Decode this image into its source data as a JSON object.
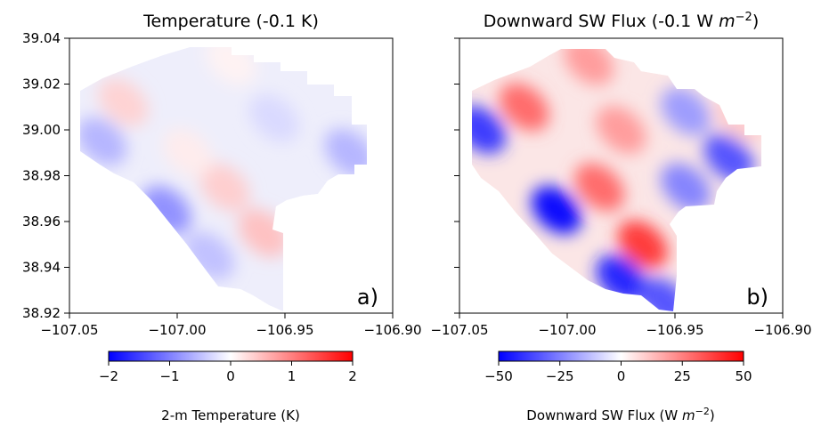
{
  "chart_data": [
    {
      "type": "heatmap",
      "title": "Temperature  (-0.1 K)",
      "panel_label": "a)",
      "xlim": [
        -107.05,
        -106.9
      ],
      "ylim": [
        38.92,
        39.04
      ],
      "x_ticks": [
        "−107.05",
        "−107.00",
        "−106.95",
        "−106.90"
      ],
      "y_ticks": [
        "39.04",
        "39.02",
        "39.00",
        "38.98",
        "38.96",
        "38.94",
        "38.92"
      ],
      "colorbar": {
        "label": "2-m Temperature (K)",
        "range": [
          -2,
          2
        ],
        "ticks": [
          "−2",
          "−1",
          "0",
          "1",
          "2"
        ]
      },
      "features": [
        {
          "lon": -107.035,
          "lat": 38.995,
          "value": -0.6
        },
        {
          "lon": -107.005,
          "lat": 38.965,
          "value": -0.9
        },
        {
          "lon": -106.985,
          "lat": 38.945,
          "value": -0.5
        },
        {
          "lon": -106.96,
          "lat": 38.955,
          "value": 0.5
        },
        {
          "lon": -106.978,
          "lat": 38.975,
          "value": 0.4
        },
        {
          "lon": -106.995,
          "lat": 38.99,
          "value": 0.15
        },
        {
          "lon": -107.025,
          "lat": 39.012,
          "value": 0.35
        },
        {
          "lon": -106.92,
          "lat": 38.99,
          "value": -0.6
        },
        {
          "lon": -106.955,
          "lat": 39.005,
          "value": -0.3
        },
        {
          "lon": -106.975,
          "lat": 39.03,
          "value": 0.1
        }
      ]
    },
    {
      "type": "heatmap",
      "title": "Downward SW Flux (-0.1 W m⁻²)",
      "panel_label": "b)",
      "xlim": [
        -107.05,
        -106.9
      ],
      "ylim": [
        38.92,
        39.04
      ],
      "x_ticks": [
        "−107.05",
        "−107.00",
        "−106.95",
        "−106.90"
      ],
      "colorbar": {
        "label": "Downward SW Flux (W m⁻²)",
        "range": [
          -50,
          50
        ],
        "ticks": [
          "−50",
          "−25",
          "0",
          "25",
          "50"
        ]
      },
      "features": [
        {
          "lon": -107.04,
          "lat": 39.0,
          "value": -40
        },
        {
          "lon": -107.005,
          "lat": 38.965,
          "value": -50
        },
        {
          "lon": -106.975,
          "lat": 38.935,
          "value": -45
        },
        {
          "lon": -106.955,
          "lat": 38.925,
          "value": -35
        },
        {
          "lon": -106.985,
          "lat": 38.975,
          "value": 30
        },
        {
          "lon": -106.965,
          "lat": 38.95,
          "value": 40
        },
        {
          "lon": -107.02,
          "lat": 39.01,
          "value": 30
        },
        {
          "lon": -106.975,
          "lat": 39.0,
          "value": 20
        },
        {
          "lon": -106.99,
          "lat": 39.03,
          "value": 20
        },
        {
          "lon": -106.945,
          "lat": 39.008,
          "value": -20
        },
        {
          "lon": -106.925,
          "lat": 38.988,
          "value": -35
        },
        {
          "lon": -106.945,
          "lat": 38.975,
          "value": -25
        },
        {
          "lon": -106.92,
          "lat": 39.005,
          "value": 10
        }
      ]
    }
  ]
}
